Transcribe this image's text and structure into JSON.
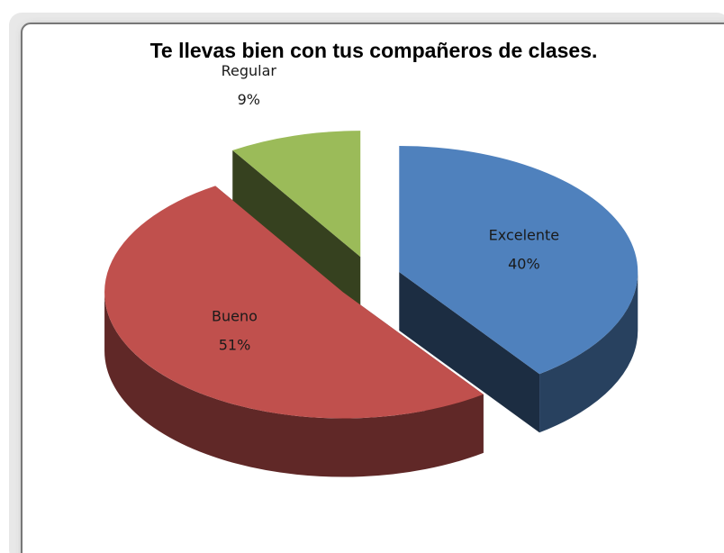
{
  "chart_data": {
    "type": "pie3d",
    "title": "Te llevas bien con tus compañeros de clases.",
    "categories": [
      "Excelente",
      "Bueno",
      "Regular"
    ],
    "values": [
      40,
      51,
      9
    ],
    "value_labels": [
      "40%",
      "51%",
      "9%"
    ],
    "colors": [
      "#4f81bd",
      "#c0504d",
      "#9bbb59"
    ]
  }
}
